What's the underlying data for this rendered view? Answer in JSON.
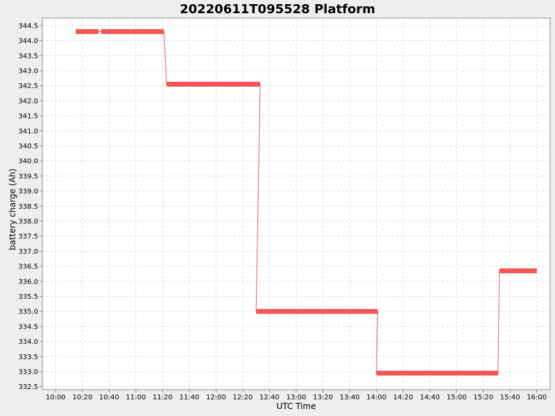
{
  "chart_data": {
    "type": "line",
    "title": "20220611T095528 Platform",
    "xlabel": "UTC Time",
    "ylabel": "battery charge (Ah)",
    "x_ticks": [
      "10:00",
      "10:20",
      "10:40",
      "11:00",
      "11:20",
      "11:40",
      "12:00",
      "12:20",
      "12:40",
      "13:00",
      "13:20",
      "13:40",
      "14:00",
      "14:20",
      "14:40",
      "15:00",
      "15:20",
      "15:40",
      "16:00"
    ],
    "x_range": [
      "09:50",
      "16:10"
    ],
    "ylim": [
      332.4,
      344.75
    ],
    "y_ticks": [
      332.5,
      333.0,
      333.5,
      334.0,
      334.5,
      335.0,
      335.5,
      336.0,
      336.5,
      337.0,
      337.5,
      338.0,
      338.5,
      339.0,
      339.5,
      340.0,
      340.5,
      341.0,
      341.5,
      342.0,
      342.5,
      343.0,
      343.5,
      344.0,
      344.5
    ],
    "grid": true,
    "colors": {
      "series": "#f55555",
      "plot_bg": "#ffffff",
      "grid": "#d8d8d8"
    },
    "series": [
      {
        "points": [
          [
            "10:15",
            344.3
          ],
          [
            "10:32",
            344.3
          ],
          [
            "10:34",
            344.3
          ],
          [
            "11:21",
            344.3
          ],
          [
            "11:23",
            342.55
          ],
          [
            "12:33",
            342.55
          ],
          [
            "12:30",
            335.0
          ],
          [
            "14:01",
            335.0
          ],
          [
            "14:00",
            332.95
          ],
          [
            "15:31",
            332.95
          ],
          [
            "15:32",
            336.35
          ],
          [
            "16:00",
            336.35
          ]
        ]
      }
    ]
  }
}
